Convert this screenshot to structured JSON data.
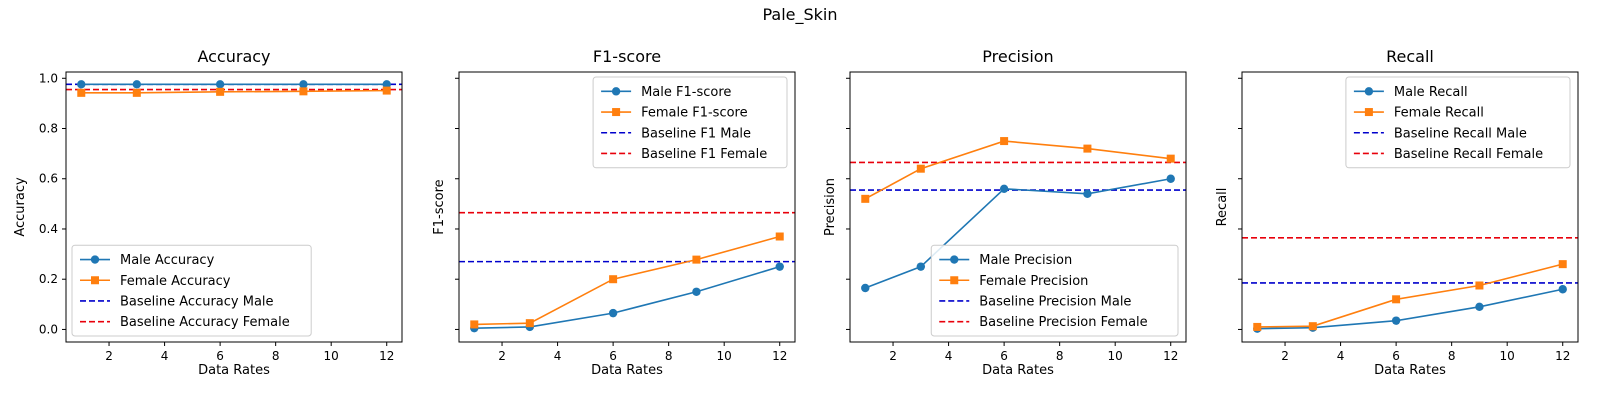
{
  "figure": {
    "title": "Pale_Skin"
  },
  "colors": {
    "male": "#1f77b4",
    "female": "#ff7f0e",
    "baseline_male": "#0000cc",
    "baseline_female": "#e8000b"
  },
  "chart_data": [
    {
      "type": "line",
      "title": "Accuracy",
      "xlabel": "Data Rates",
      "ylabel": "Accuracy",
      "xlim": [
        0.45,
        12.55
      ],
      "ylim": [
        -0.05,
        1.025
      ],
      "xticks": [
        2,
        4,
        6,
        8,
        10,
        12
      ],
      "yticks": [
        0.0,
        0.2,
        0.4,
        0.6,
        0.8,
        1.0
      ],
      "ytick_labels": [
        "0.0",
        "0.2",
        "0.4",
        "0.6",
        "0.8",
        "1.0"
      ],
      "legend_position": "lower-left",
      "x": [
        1,
        3,
        6,
        9,
        12
      ],
      "series": [
        {
          "name": "Male Accuracy",
          "marker": "circle",
          "values": [
            0.976,
            0.976,
            0.976,
            0.976,
            0.976
          ]
        },
        {
          "name": "Female Accuracy",
          "marker": "square",
          "values": [
            0.942,
            0.942,
            0.946,
            0.948,
            0.951
          ]
        }
      ],
      "baselines": [
        {
          "name": "Baseline Accuracy Male",
          "value": 0.976
        },
        {
          "name": "Baseline Accuracy Female",
          "value": 0.955
        }
      ]
    },
    {
      "type": "line",
      "title": "F1-score",
      "xlabel": "Data Rates",
      "ylabel": "F1-score",
      "xlim": [
        0.45,
        12.55
      ],
      "ylim": [
        -0.05,
        1.025
      ],
      "xticks": [
        2,
        4,
        6,
        8,
        10,
        12
      ],
      "yticks": [
        0.0,
        0.2,
        0.4,
        0.6,
        0.8,
        1.0
      ],
      "ytick_labels": [],
      "legend_position": "upper-right",
      "x": [
        1,
        3,
        6,
        9,
        12
      ],
      "series": [
        {
          "name": "Male F1-score",
          "marker": "circle",
          "values": [
            0.005,
            0.01,
            0.065,
            0.15,
            0.25
          ]
        },
        {
          "name": "Female F1-score",
          "marker": "square",
          "values": [
            0.02,
            0.025,
            0.2,
            0.278,
            0.37
          ]
        }
      ],
      "baselines": [
        {
          "name": "Baseline F1 Male",
          "value": 0.27
        },
        {
          "name": "Baseline F1 Female",
          "value": 0.465
        }
      ]
    },
    {
      "type": "line",
      "title": "Precision",
      "xlabel": "Data Rates",
      "ylabel": "Precision",
      "xlim": [
        0.45,
        12.55
      ],
      "ylim": [
        -0.05,
        1.025
      ],
      "xticks": [
        2,
        4,
        6,
        8,
        10,
        12
      ],
      "yticks": [
        0.0,
        0.2,
        0.4,
        0.6,
        0.8,
        1.0
      ],
      "ytick_labels": [],
      "legend_position": "lower-right",
      "x": [
        1,
        3,
        6,
        9,
        12
      ],
      "series": [
        {
          "name": "Male Precision",
          "marker": "circle",
          "values": [
            0.165,
            0.25,
            0.56,
            0.54,
            0.6
          ]
        },
        {
          "name": "Female Precision",
          "marker": "square",
          "values": [
            0.52,
            0.64,
            0.75,
            0.72,
            0.68
          ]
        }
      ],
      "baselines": [
        {
          "name": "Baseline Precision Male",
          "value": 0.555
        },
        {
          "name": "Baseline Precision Female",
          "value": 0.665
        }
      ]
    },
    {
      "type": "line",
      "title": "Recall",
      "xlabel": "Data Rates",
      "ylabel": "Recall",
      "xlim": [
        0.45,
        12.55
      ],
      "ylim": [
        -0.05,
        1.025
      ],
      "xticks": [
        2,
        4,
        6,
        8,
        10,
        12
      ],
      "yticks": [
        0.0,
        0.2,
        0.4,
        0.6,
        0.8,
        1.0
      ],
      "ytick_labels": [],
      "legend_position": "upper-right",
      "x": [
        1,
        3,
        6,
        9,
        12
      ],
      "series": [
        {
          "name": "Male Recall",
          "marker": "circle",
          "values": [
            0.003,
            0.007,
            0.035,
            0.09,
            0.16
          ]
        },
        {
          "name": "Female Recall",
          "marker": "square",
          "values": [
            0.01,
            0.013,
            0.12,
            0.175,
            0.26
          ]
        }
      ],
      "baselines": [
        {
          "name": "Baseline Recall Male",
          "value": 0.185
        },
        {
          "name": "Baseline Recall Female",
          "value": 0.365
        }
      ]
    }
  ]
}
